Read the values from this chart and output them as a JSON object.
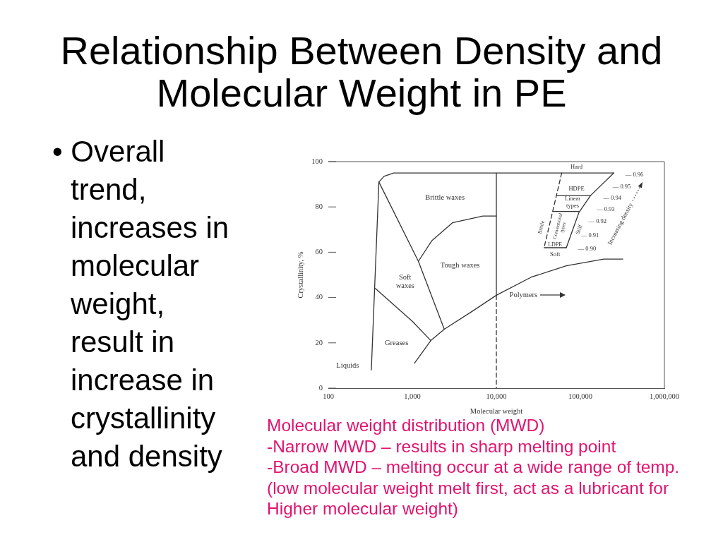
{
  "chart_data": {
    "type": "line",
    "title": "Relationship Between Density and Molecular Weight in PE",
    "xlabel": "Molecular weight",
    "ylabel": "Crystallinity, %",
    "log": "x",
    "xlim": [
      100,
      1000000
    ],
    "xticks": [
      100,
      {
        "value": 1000,
        "label": "1,000"
      },
      {
        "value": 10000,
        "label": "10,000"
      },
      {
        "value": 100000,
        "label": "100,000"
      },
      {
        "value": 1000000,
        "label": "1,000,000"
      }
    ],
    "ylim": [
      0,
      100
    ],
    "yticks": [
      0,
      20,
      40,
      60,
      80,
      100
    ],
    "grid": false,
    "legend": false,
    "marker": "none",
    "series": [
      {
        "color": "#333333",
        "x": [
          325,
          400,
          460,
          600,
          250000
        ],
        "values": [
          8,
          91,
          93.5,
          95,
          95
        ]
      },
      {
        "color": "#333333",
        "x": [
          400,
          1180,
          2400
        ],
        "values": [
          91,
          56,
          26
        ]
      },
      {
        "color": "#333333",
        "x": [
          1180,
          1700,
          3000,
          6900,
          10000
        ],
        "values": [
          56,
          65,
          73,
          76,
          76
        ]
      },
      {
        "color": "#333333",
        "x": [
          10000,
          10000
        ],
        "values": [
          95,
          41
        ]
      },
      {
        "color": "#333333",
        "x": [
          10000,
          10000
        ],
        "values": [
          41,
          0
        ],
        "line_style": "dashed"
      },
      {
        "color": "#333333",
        "x": [
          363,
          1000,
          1660
        ],
        "values": [
          44,
          29.5,
          21
        ]
      },
      {
        "color": "#333333",
        "x": [
          1060,
          1660,
          2400,
          5200,
          10000,
          26000,
          68000,
          190000,
          320000
        ],
        "values": [
          11,
          21,
          26,
          34,
          41,
          49,
          54,
          57,
          57
        ]
      },
      {
        "color": "#333333",
        "x": [
          60000,
          37000
        ],
        "values": [
          95,
          62
        ],
        "line_style": "dashed"
      },
      {
        "color": "#333333",
        "x": [
          37000,
          68000
        ],
        "values": [
          62,
          62
        ]
      },
      {
        "color": "#333333",
        "x": [
          250000,
          132000,
          96000,
          68000
        ],
        "values": [
          95,
          85,
          77.5,
          62
        ]
      },
      {
        "color": "#333333",
        "x": [
          52000,
          132000
        ],
        "values": [
          85,
          85
        ]
      },
      {
        "color": "#333333",
        "x": [
          47000,
          96000
        ],
        "values": [
          78,
          78
        ]
      }
    ],
    "annotations": [
      "• Overall trend, increases in molecular weight, result in increase in crystallinity and density",
      "Molecular weight distribution (MWD)",
      "-Narrow MWD – results in sharp melting point",
      "-Broad MWD – melting occur at a wide range of temp.",
      "(low molecular weight melt first, act as a lubricant for Higher molecular weight)",
      "Brittle waxes",
      "Tough waxes",
      "Soft\nwaxes",
      "Greases",
      "Liquids",
      "Polymers",
      "Hard",
      "HDPE",
      "Linear\ntypes",
      "LDPE",
      "Soft",
      "Brittle",
      "Conventional\ntypes",
      "Stiff",
      "Increasing density",
      "— 0.96",
      "— 0.95",
      "— 0.94",
      "— 0.93",
      "— 0.92",
      "— 0.91",
      "— 0.90"
    ]
  }
}
